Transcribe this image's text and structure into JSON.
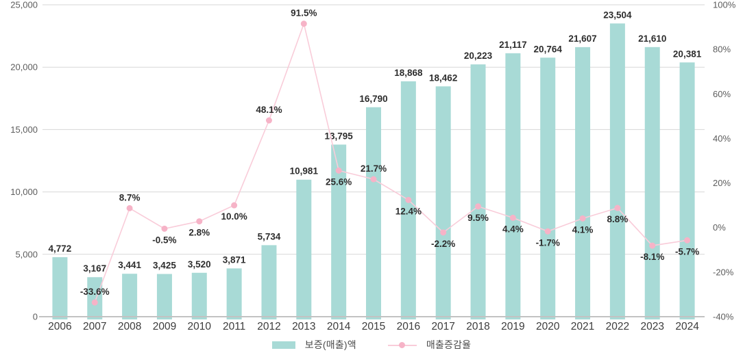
{
  "chart_data": {
    "type": "bar",
    "subtype": "bar+line dual-axis",
    "title": "",
    "categories": [
      "2006",
      "2007",
      "2008",
      "2009",
      "2010",
      "2011",
      "2012",
      "2013",
      "2014",
      "2015",
      "2016",
      "2017",
      "2018",
      "2019",
      "2020",
      "2021",
      "2022",
      "2023",
      "2024"
    ],
    "series": [
      {
        "name": "보증(매출)액",
        "type": "bar",
        "axis": "left",
        "values": [
          4772,
          3167,
          3441,
          3425,
          3520,
          3871,
          5734,
          10981,
          13795,
          16790,
          18868,
          18462,
          20223,
          21117,
          20764,
          21607,
          23504,
          21610,
          20381
        ],
        "labels": [
          "4,772",
          "3,167",
          "3,441",
          "3,425",
          "3,520",
          "3,871",
          "5,734",
          "10,981",
          "13,795",
          "16,790",
          "18,868",
          "18,462",
          "20,223",
          "21,117",
          "20,764",
          "21,607",
          "23,504",
          "21,610",
          "20,381"
        ]
      },
      {
        "name": "매출증감율",
        "type": "line",
        "axis": "right",
        "values": [
          null,
          -33.6,
          8.7,
          -0.5,
          2.8,
          10.0,
          48.1,
          91.5,
          25.6,
          21.7,
          12.4,
          -2.2,
          9.5,
          4.4,
          -1.7,
          4.1,
          8.8,
          -8.1,
          -5.7
        ],
        "labels": [
          null,
          "-33.6%",
          "8.7%",
          "-0.5%",
          "2.8%",
          "10.0%",
          "48.1%",
          "91.5%",
          "25.6%",
          "21.7%",
          "12.4%",
          "-2.2%",
          "9.5%",
          "4.4%",
          "-1.7%",
          "4.1%",
          "8.8%",
          "-8.1%",
          "-5.7%"
        ],
        "label_side": [
          null,
          "above",
          "above",
          "below",
          "below",
          "below",
          "above",
          "above",
          "below",
          "above",
          "below",
          "below",
          "below",
          "below",
          "below",
          "below",
          "below",
          "below",
          "below"
        ]
      }
    ],
    "left_axis": {
      "min": 0,
      "max": 25000,
      "step": 5000,
      "tick_labels": [
        "25,000",
        "20,000",
        "15,000",
        "10,000",
        "5,000",
        "0"
      ],
      "tick_values": [
        25000,
        20000,
        15000,
        10000,
        5000,
        0
      ]
    },
    "right_axis": {
      "min": -40,
      "max": 100,
      "step": 20,
      "tick_labels": [
        "100%",
        "80%",
        "60%",
        "40%",
        "20%",
        "0%",
        "-20%",
        "-40%"
      ],
      "tick_values": [
        100,
        80,
        60,
        40,
        20,
        0,
        -20,
        -40
      ]
    },
    "grid": true,
    "legend_position": "bottom",
    "legend": [
      {
        "label": "보증(매출)액",
        "marker": "bar-swatch"
      },
      {
        "label": "매출증감율",
        "marker": "line-dot"
      }
    ],
    "colors": {
      "bar": "#a8dad6",
      "line": "#f9ccd9",
      "marker": "#f6b3c7",
      "grid": "#d7d7d7",
      "axis": "#c2c2c2",
      "data_label": "#2d2d2d",
      "tick_label": "#5c5c5c",
      "year_label": "#3c3c3c"
    }
  }
}
